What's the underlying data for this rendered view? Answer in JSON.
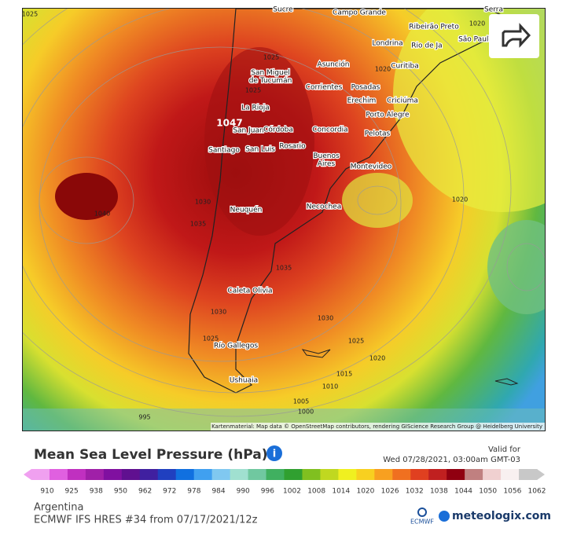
{
  "map": {
    "cities": [
      "Sucre",
      "Campo Grande",
      "Ribeirão Preto",
      "Serra",
      "Londrina",
      "São Paulo",
      "Rio de Ja",
      "Curitiba",
      "Asunción",
      "San Miguel de Tucumán",
      "Corrientes",
      "Posadas",
      "Erechim",
      "Criciúma",
      "La Rioja",
      "Porto Alegre",
      "San Juan",
      "Córdoba",
      "Concordia",
      "Pelotas",
      "Santiago",
      "San Luis",
      "Rosario",
      "Buenos Aires",
      "Montevideo",
      "Neuquén",
      "Necochea",
      "Caleta Olivia",
      "Río Gallegos",
      "Ushuaia"
    ],
    "isobars": [
      1025,
      1025,
      1020,
      1020,
      1025,
      1047,
      1040,
      1030,
      1035,
      1035,
      1030,
      1030,
      1025,
      1025,
      1020,
      1015,
      1010,
      1005,
      1000,
      995,
      1020
    ],
    "attribution": "Kartenmaterial: Map data © OpenStreetMap contributors, rendering GIScience Research Group @ Heidelberg University"
  },
  "header": {
    "title": "Mean Sea Level Pressure (hPa)",
    "valid_label": "Valid for",
    "valid_time": "Wed 07/28/2021, 03:00am GMT-03"
  },
  "colorbar": {
    "labels": [
      910,
      925,
      938,
      950,
      962,
      972,
      978,
      984,
      990,
      996,
      1002,
      1008,
      1014,
      1020,
      1026,
      1032,
      1038,
      1044,
      1050,
      1056,
      1062
    ],
    "colors": [
      "#f0a0f0",
      "#e060e0",
      "#c030c0",
      "#a020a8",
      "#8010a0",
      "#601090",
      "#4020a0",
      "#2040c0",
      "#1070e0",
      "#40a0f0",
      "#80c8f0",
      "#a0e0d0",
      "#70c8a0",
      "#40b060",
      "#30a030",
      "#80c020",
      "#c0d820",
      "#f0f020",
      "#f8d020",
      "#f8a020",
      "#f07020",
      "#e04020",
      "#c02020",
      "#900010",
      "#c08080",
      "#f0d0d0",
      "#f8f0f0",
      "#c8c8c8"
    ]
  },
  "footer": {
    "region": "Argentina",
    "model": "ECMWF IFS HRES #34 from 07/17/2021/12z",
    "ecmwf": "ECMWF",
    "brand": "meteologix.com"
  }
}
